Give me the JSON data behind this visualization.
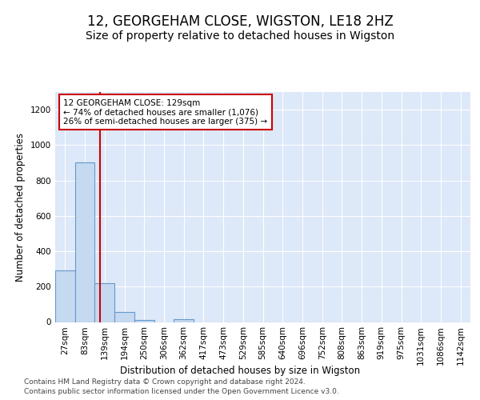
{
  "title_line1": "12, GEORGEHAM CLOSE, WIGSTON, LE18 2HZ",
  "title_line2": "Size of property relative to detached houses in Wigston",
  "xlabel": "Distribution of detached houses by size in Wigston",
  "ylabel": "Number of detached properties",
  "bar_categories": [
    "27sqm",
    "83sqm",
    "139sqm",
    "194sqm",
    "250sqm",
    "306sqm",
    "362sqm",
    "417sqm",
    "473sqm",
    "529sqm",
    "585sqm",
    "640sqm",
    "696sqm",
    "752sqm",
    "808sqm",
    "863sqm",
    "919sqm",
    "975sqm",
    "1031sqm",
    "1086sqm",
    "1142sqm"
  ],
  "bar_values": [
    290,
    900,
    220,
    55,
    10,
    0,
    15,
    0,
    0,
    0,
    0,
    0,
    0,
    0,
    0,
    0,
    0,
    0,
    0,
    0,
    0
  ],
  "bar_color": "#c5d9f1",
  "bar_edge_color": "#6699cc",
  "bar_edge_width": 0.8,
  "red_line_x": 1.75,
  "red_line_color": "#cc0000",
  "annotation_text": "12 GEORGEHAM CLOSE: 129sqm\n← 74% of detached houses are smaller (1,076)\n26% of semi-detached houses are larger (375) →",
  "annotation_box_edge": "#cc0000",
  "ylim": [
    0,
    1300
  ],
  "yticks": [
    0,
    200,
    400,
    600,
    800,
    1000,
    1200
  ],
  "background_color": "#dde8f8",
  "grid_color": "#ffffff",
  "footer_line1": "Contains HM Land Registry data © Crown copyright and database right 2024.",
  "footer_line2": "Contains public sector information licensed under the Open Government Licence v3.0.",
  "title_fontsize": 12,
  "subtitle_fontsize": 10,
  "axis_label_fontsize": 8.5,
  "tick_fontsize": 7.5
}
